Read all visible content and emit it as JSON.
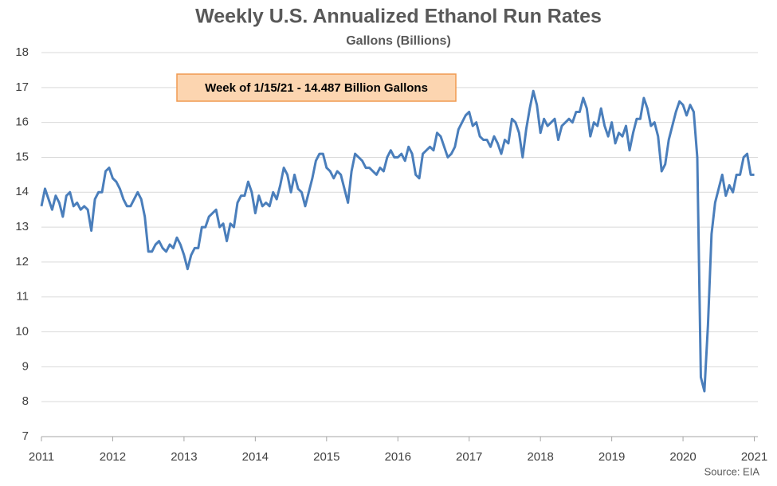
{
  "chart_data": {
    "type": "line",
    "title": "Weekly U.S. Annualized Ethanol Run Rates",
    "subtitle": "Gallons (Billions)",
    "annotation": "Week of 1/15/21 - 14.487 Billion Gallons",
    "source": "Source: EIA",
    "xlim": [
      2011,
      2021.05
    ],
    "xticks": [
      2011,
      2012,
      2013,
      2014,
      2015,
      2016,
      2017,
      2018,
      2019,
      2020,
      2021
    ],
    "ylim": [
      7,
      18
    ],
    "yticks": [
      7,
      8,
      9,
      10,
      11,
      12,
      13,
      14,
      15,
      16,
      17,
      18
    ],
    "grid": true,
    "x": [
      2011,
      2011.05,
      2011.1,
      2011.15,
      2011.2,
      2011.25,
      2011.3,
      2011.35,
      2011.4,
      2011.45,
      2011.5,
      2011.55,
      2011.6,
      2011.65,
      2011.7,
      2011.75,
      2011.8,
      2011.85,
      2011.9,
      2011.95,
      2012,
      2012.05,
      2012.1,
      2012.15,
      2012.2,
      2012.25,
      2012.3,
      2012.35,
      2012.4,
      2012.45,
      2012.5,
      2012.55,
      2012.6,
      2012.65,
      2012.7,
      2012.75,
      2012.8,
      2012.85,
      2012.9,
      2012.95,
      2013,
      2013.05,
      2013.1,
      2013.15,
      2013.2,
      2013.25,
      2013.3,
      2013.35,
      2013.4,
      2013.45,
      2013.5,
      2013.55,
      2013.6,
      2013.65,
      2013.7,
      2013.75,
      2013.8,
      2013.85,
      2013.9,
      2013.95,
      2014,
      2014.05,
      2014.1,
      2014.15,
      2014.2,
      2014.25,
      2014.3,
      2014.35,
      2014.4,
      2014.45,
      2014.5,
      2014.55,
      2014.6,
      2014.65,
      2014.7,
      2014.75,
      2014.8,
      2014.85,
      2014.9,
      2014.95,
      2015,
      2015.05,
      2015.1,
      2015.15,
      2015.2,
      2015.25,
      2015.3,
      2015.35,
      2015.4,
      2015.45,
      2015.5,
      2015.55,
      2015.6,
      2015.65,
      2015.7,
      2015.75,
      2015.8,
      2015.85,
      2015.9,
      2015.95,
      2016,
      2016.05,
      2016.1,
      2016.15,
      2016.2,
      2016.25,
      2016.3,
      2016.35,
      2016.4,
      2016.45,
      2016.5,
      2016.55,
      2016.6,
      2016.65,
      2016.7,
      2016.75,
      2016.8,
      2016.85,
      2016.9,
      2016.95,
      2017,
      2017.05,
      2017.1,
      2017.15,
      2017.2,
      2017.25,
      2017.3,
      2017.35,
      2017.4,
      2017.45,
      2017.5,
      2017.55,
      2017.6,
      2017.65,
      2017.7,
      2017.75,
      2017.8,
      2017.85,
      2017.9,
      2017.95,
      2018,
      2018.05,
      2018.1,
      2018.15,
      2018.2,
      2018.25,
      2018.3,
      2018.35,
      2018.4,
      2018.45,
      2018.5,
      2018.55,
      2018.6,
      2018.65,
      2018.7,
      2018.75,
      2018.8,
      2018.85,
      2018.9,
      2018.95,
      2019,
      2019.05,
      2019.1,
      2019.15,
      2019.2,
      2019.25,
      2019.3,
      2019.35,
      2019.4,
      2019.45,
      2019.5,
      2019.55,
      2019.6,
      2019.65,
      2019.7,
      2019.75,
      2019.8,
      2019.85,
      2019.9,
      2019.95,
      2020,
      2020.05,
      2020.1,
      2020.15,
      2020.2,
      2020.25,
      2020.3,
      2020.35,
      2020.4,
      2020.45,
      2020.5,
      2020.55,
      2020.6,
      2020.65,
      2020.7,
      2020.75,
      2020.8,
      2020.85,
      2020.9,
      2020.95,
      2021
    ],
    "series": [
      {
        "name": "Run rate",
        "color": "#4a7ebb",
        "values": [
          13.6,
          14.1,
          13.8,
          13.5,
          13.9,
          13.7,
          13.3,
          13.9,
          14.0,
          13.6,
          13.7,
          13.5,
          13.6,
          13.5,
          12.9,
          13.8,
          14.0,
          14.0,
          14.6,
          14.7,
          14.4,
          14.3,
          14.1,
          13.8,
          13.6,
          13.6,
          13.8,
          14.0,
          13.8,
          13.3,
          12.3,
          12.3,
          12.5,
          12.6,
          12.4,
          12.3,
          12.5,
          12.4,
          12.7,
          12.5,
          12.2,
          11.8,
          12.2,
          12.4,
          12.4,
          13.0,
          13.0,
          13.3,
          13.4,
          13.5,
          13.0,
          13.1,
          12.6,
          13.1,
          13.0,
          13.7,
          13.9,
          13.9,
          14.3,
          14.0,
          13.4,
          13.9,
          13.6,
          13.7,
          13.6,
          14.0,
          13.8,
          14.2,
          14.7,
          14.5,
          14.0,
          14.5,
          14.1,
          14.0,
          13.6,
          14.0,
          14.4,
          14.9,
          15.1,
          15.1,
          14.7,
          14.6,
          14.4,
          14.6,
          14.5,
          14.1,
          13.7,
          14.6,
          15.1,
          15.0,
          14.9,
          14.7,
          14.7,
          14.6,
          14.5,
          14.7,
          14.6,
          15.0,
          15.2,
          15.0,
          15.0,
          15.1,
          14.9,
          15.3,
          15.1,
          14.5,
          14.4,
          15.1,
          15.2,
          15.3,
          15.2,
          15.7,
          15.6,
          15.3,
          15.0,
          15.1,
          15.3,
          15.8,
          16.0,
          16.2,
          16.3,
          15.9,
          16.0,
          15.6,
          15.5,
          15.5,
          15.3,
          15.6,
          15.4,
          15.1,
          15.5,
          15.4,
          16.1,
          16.0,
          15.7,
          15.0,
          15.8,
          16.4,
          16.9,
          16.5,
          15.7,
          16.1,
          15.9,
          16.0,
          16.1,
          15.5,
          15.9,
          16.0,
          16.1,
          16.0,
          16.3,
          16.3,
          16.7,
          16.4,
          15.6,
          16.0,
          15.9,
          16.4,
          15.9,
          15.6,
          16.0,
          15.4,
          15.7,
          15.6,
          15.9,
          15.2,
          15.7,
          16.1,
          16.1,
          16.7,
          16.4,
          15.9,
          16.0,
          15.6,
          14.6,
          14.8,
          15.5,
          15.9,
          16.3,
          16.6,
          16.5,
          16.2,
          16.5,
          16.3,
          15.0,
          8.7,
          8.3,
          10.2,
          12.8,
          13.7,
          14.1,
          14.5,
          13.9,
          14.2,
          14.0,
          14.5,
          14.5,
          15.0,
          15.1,
          14.5,
          14.5
        ]
      }
    ]
  }
}
